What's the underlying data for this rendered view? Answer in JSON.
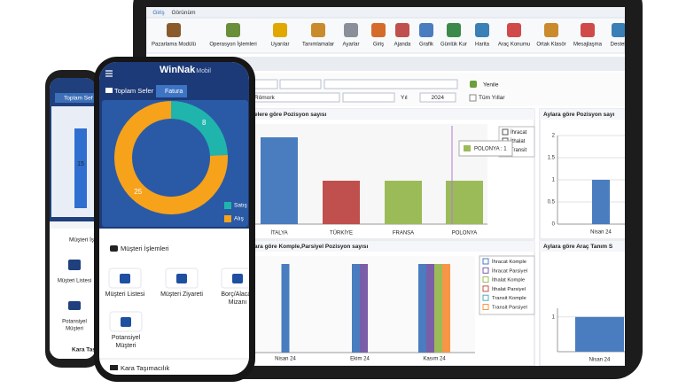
{
  "tablet": {
    "tabs": [
      "Giriş",
      "Görünüm"
    ],
    "ribbon": [
      "Pazarlama Modülü",
      "Operasyon İşlemleri",
      "Uyarılar",
      "Tanımlamalar",
      "Ayarlar",
      "Giriş",
      "Ajanda",
      "Grafik",
      "Günlük Kur",
      "Harita",
      "Araç Konumu",
      "Ortak Klasör",
      "Mesajlaşma",
      "Destek"
    ],
    "filters": {
      "trailer": "Römork",
      "year_label": "Yıl",
      "year": "2024",
      "refresh": "Yenile",
      "all_years": "Tüm Yıllar"
    },
    "charts": [
      {
        "type": "bar",
        "title": "elere göre Pozisyon sayısı",
        "categories": [
          "İTALYA",
          "TÜRKİYE",
          "FRANSA",
          "POLONYA"
        ],
        "values": [
          2,
          1,
          1,
          1
        ],
        "colors": [
          "#4a7cc0",
          "#c0504d",
          "#9bbb59",
          "#9bbb59"
        ],
        "legend": [
          "İhracat",
          "İthalat",
          "Transit"
        ],
        "tooltip": "POLONYA : 1"
      },
      {
        "type": "bar",
        "title": "Aylara göre Pozisyon sayı",
        "categories": [
          "Nisan 24"
        ],
        "values": [
          1
        ],
        "color": "#4a7cc0",
        "ylim": [
          0,
          2
        ],
        "yticks": [
          0,
          0.5,
          1,
          1.5,
          2
        ]
      },
      {
        "type": "grouped-bar",
        "title": "ara göre Komple,Parsiyel Pozisyon sayısı",
        "categories": [
          "Nisan 24",
          "Ekim 24",
          "Kasım 24"
        ],
        "series": [
          {
            "name": "İhracat Komple",
            "color": "#4a7cc0",
            "values": [
              1,
              1,
              1
            ]
          },
          {
            "name": "İhracat Parsiyel",
            "color": "#7a5ea8",
            "values": [
              null,
              1,
              1
            ]
          },
          {
            "name": "İthalat Komple",
            "color": "#9bbb59",
            "values": [
              null,
              null,
              1
            ]
          },
          {
            "name": "İthalat Parsiyel",
            "color": "#c0504d",
            "values": [
              null,
              null,
              null
            ]
          },
          {
            "name": "Transit Komple",
            "color": "#4bacc6",
            "values": [
              null,
              null,
              null
            ]
          },
          {
            "name": "Transit Parsiyel",
            "color": "#f79646",
            "values": [
              null,
              null,
              1
            ]
          }
        ]
      },
      {
        "type": "bar",
        "title": "Aylara göre Araç Tanım S",
        "categories": [
          "Nisan 24"
        ],
        "values": [
          1
        ],
        "color": "#4a7cc0",
        "ylim": [
          0,
          1.25
        ],
        "yticks": [
          1
        ]
      }
    ]
  },
  "back_phone": {
    "card": "Toplam Sef",
    "bar_label": "15",
    "section": "Müşteri İşl",
    "items": [
      "Müşteri Listesi",
      "Potansiyel",
      "Müşteri"
    ],
    "footer": "Kara Taşım"
  },
  "front_phone": {
    "brand": "WinNak",
    "brand_suffix": "Mobil",
    "tabs": [
      "Toplam Sefer",
      "Fatura"
    ],
    "donut": {
      "values": [
        8,
        25
      ],
      "colors": [
        "#1fb5ad",
        "#f7a21b"
      ],
      "legend": [
        "Satış",
        "Alış"
      ]
    },
    "section": "Müşteri İşlemleri",
    "items": [
      [
        "Müşteri Listesi"
      ],
      [
        "Müşteri Ziyareti"
      ],
      [
        "Borç/Alacak",
        "Mizanı"
      ],
      [
        "Potansiyel",
        "Müşteri"
      ]
    ],
    "footer": "Kara Taşımacılık"
  }
}
